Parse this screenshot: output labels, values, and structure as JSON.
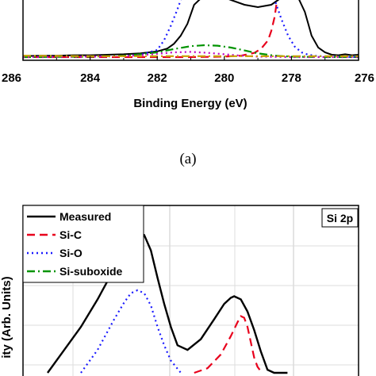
{
  "chart_data": [
    {
      "type": "line",
      "panel_label": "(a)",
      "xlabel": "Binding Energy (eV)",
      "ylabel": "",
      "xlim": [
        286,
        276
      ],
      "x_reversed": true,
      "tick_labels": [
        "286",
        "284",
        "282",
        "280",
        "278",
        "276"
      ],
      "series": [
        {
          "key": "measured",
          "color": "#000000",
          "dash": "solid",
          "x": [
            286,
            285.5,
            285,
            284.5,
            284,
            283.5,
            283,
            282.5,
            282,
            281.7,
            281.5,
            281.3,
            281.1,
            281.0,
            280.9,
            280.6,
            280.2,
            279.8,
            279.4,
            279.0,
            278.6,
            278.4,
            278.2,
            278.0,
            277.8,
            277.6,
            277.5,
            277.4,
            277.2,
            277.0,
            276.8,
            276.6,
            276.4,
            276.2,
            276.0
          ],
          "y": [
            0.02,
            0.03,
            0.03,
            0.04,
            0.04,
            0.05,
            0.06,
            0.08,
            0.12,
            0.18,
            0.28,
            0.45,
            0.7,
            0.9,
            1.1,
            1.3,
            1.3,
            1.2,
            1.1,
            1.05,
            1.1,
            1.2,
            1.3,
            1.3,
            1.25,
            0.95,
            0.7,
            0.45,
            0.2,
            0.1,
            0.05,
            0.04,
            0.06,
            0.04,
            0.05
          ]
        },
        {
          "key": "si-c",
          "color": "#e8001c",
          "dash": "10,6",
          "x": [
            286,
            283,
            281,
            280,
            279.5,
            279.1,
            278.9,
            278.7,
            278.6,
            278.5,
            278.45
          ],
          "y": [
            0.0,
            0.0,
            0.0,
            0.01,
            0.03,
            0.09,
            0.18,
            0.35,
            0.55,
            0.85,
            1.1
          ]
        },
        {
          "key": "si-o",
          "color": "#1a1aff",
          "dash": "2,4",
          "x": [
            286,
            284,
            283,
            282.5,
            282,
            281.8,
            281.6,
            281.4,
            281.3,
            281.25
          ],
          "y": [
            0.0,
            0.01,
            0.02,
            0.05,
            0.15,
            0.35,
            0.65,
            1.0,
            1.2,
            1.3
          ]
        },
        {
          "key": "si-o-tail",
          "color": "#1a1aff",
          "dash": "2,4",
          "x": [
            278.65,
            278.5,
            278.3,
            278.1,
            277.9,
            277.7,
            277.5,
            277.2,
            276.8,
            276.0
          ],
          "y": [
            1.3,
            1.2,
            0.8,
            0.45,
            0.22,
            0.1,
            0.05,
            0.02,
            0.01,
            0.0
          ]
        },
        {
          "key": "si-suboxide",
          "color": "#009400",
          "dash": "10,4,2,4",
          "x": [
            286,
            284,
            283,
            282.5,
            282,
            281.5,
            281,
            280.6,
            280.2,
            279.8,
            279.4,
            279.0,
            278.5,
            278,
            277,
            276
          ],
          "y": [
            0.0,
            0.01,
            0.03,
            0.06,
            0.1,
            0.17,
            0.23,
            0.25,
            0.24,
            0.2,
            0.14,
            0.08,
            0.03,
            0.01,
            0.0,
            0.0
          ]
        },
        {
          "key": "magenta-extra",
          "color": "#c000c0",
          "dash": "2,4",
          "x": [
            286,
            284,
            283,
            282.5,
            282,
            281.5,
            281,
            280.5,
            280,
            279.5,
            279,
            278,
            277,
            276
          ],
          "y": [
            0.0,
            0.01,
            0.02,
            0.04,
            0.07,
            0.1,
            0.11,
            0.09,
            0.06,
            0.03,
            0.01,
            0.0,
            0.0,
            0.0
          ]
        },
        {
          "key": "gold-extra",
          "color": "#c8a000",
          "dash": "10,4,2,4",
          "x": [
            286,
            284,
            282,
            280,
            278,
            277,
            276
          ],
          "y": [
            0.03,
            0.02,
            0.02,
            0.02,
            0.02,
            0.02,
            0.02
          ]
        }
      ]
    },
    {
      "type": "line",
      "badge": "Si 2p",
      "ylabel": "ity (Arb. Units)",
      "x_grid": true,
      "y_grid": true,
      "legend_position": "top-left",
      "series": [
        {
          "key": "measured",
          "name": "Measured",
          "color": "#000000",
          "dash": "solid",
          "x": [
            0,
            0.5,
            1.0,
            1.5,
            2.0,
            2.3,
            2.5,
            2.7,
            2.9,
            3.1,
            3.3,
            3.5,
            3.7,
            3.9,
            4.2,
            4.6,
            5.0,
            5.3,
            5.5,
            5.6,
            5.8,
            6.0,
            6.2,
            6.4,
            6.6,
            6.8,
            7.0,
            7.2
          ],
          "y": [
            0.0,
            0.15,
            0.3,
            0.48,
            0.68,
            0.8,
            0.88,
            0.92,
            0.9,
            0.8,
            0.62,
            0.45,
            0.3,
            0.18,
            0.15,
            0.22,
            0.35,
            0.45,
            0.49,
            0.5,
            0.48,
            0.4,
            0.28,
            0.14,
            0.02,
            0.0,
            0.0,
            0.0
          ]
        },
        {
          "key": "si-c",
          "name": "Si-C",
          "color": "#e8001c",
          "dash": "10,6",
          "x": [
            4.4,
            4.8,
            5.2,
            5.5,
            5.7,
            5.8,
            5.9,
            6.0,
            6.1,
            6.2,
            6.3,
            6.4
          ],
          "y": [
            0.0,
            0.03,
            0.12,
            0.24,
            0.33,
            0.37,
            0.36,
            0.3,
            0.2,
            0.1,
            0.04,
            0.01
          ]
        },
        {
          "key": "si-o",
          "name": "Si-O",
          "color": "#1a1aff",
          "dash": "2,4",
          "x": [
            1.0,
            1.5,
            2.0,
            2.3,
            2.5,
            2.7,
            2.9,
            3.1,
            3.3,
            3.5,
            3.7,
            4.0
          ],
          "y": [
            0.0,
            0.15,
            0.35,
            0.46,
            0.52,
            0.54,
            0.52,
            0.44,
            0.3,
            0.18,
            0.08,
            0.0
          ]
        },
        {
          "key": "si-suboxide",
          "name": "Si-suboxide",
          "color": "#009400",
          "dash": "10,4,2,4",
          "x": [],
          "y": []
        }
      ]
    }
  ]
}
